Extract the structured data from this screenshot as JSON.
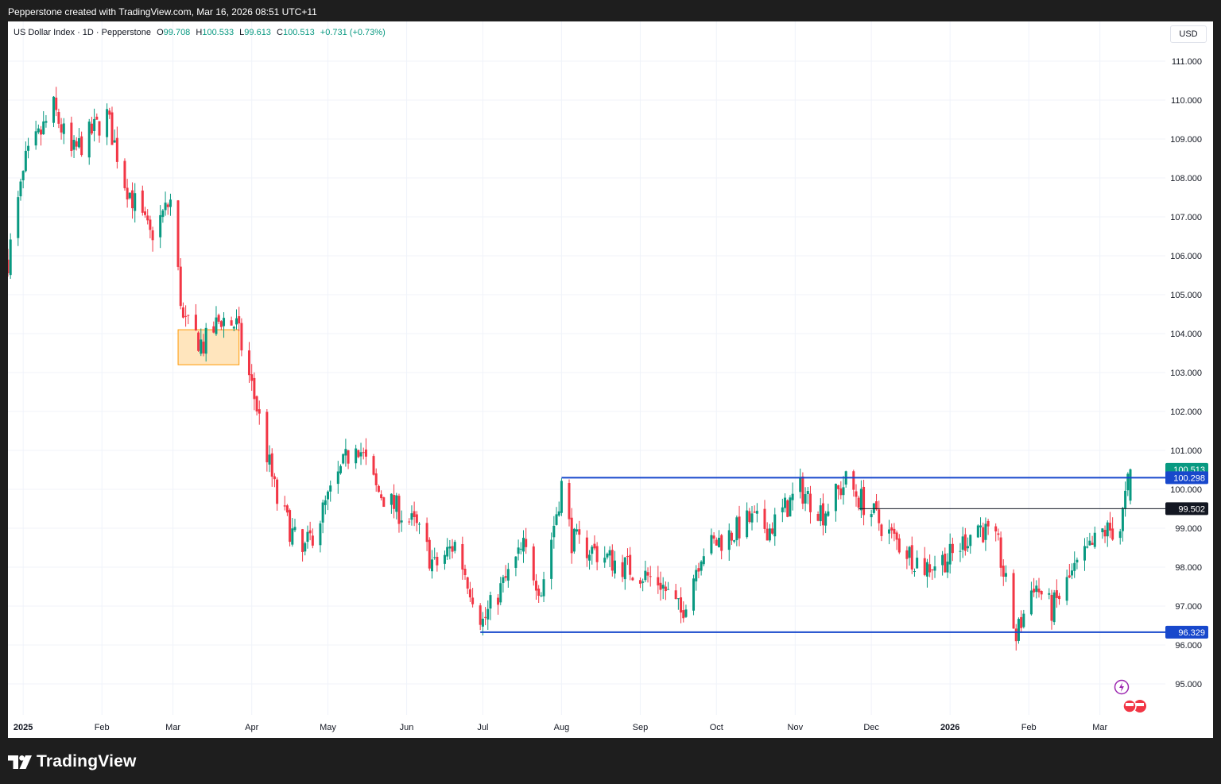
{
  "attribution": "Pepperstone created with TradingView.com, Mar 16, 2026 08:51 UTC+11",
  "legend": {
    "symbol": "US Dollar Index · 1D · Pepperstone",
    "open_label": "O",
    "open": "99.708",
    "high_label": "H",
    "high": "100.533",
    "low_label": "L",
    "low": "99.613",
    "close_label": "C",
    "close": "100.513",
    "change": "+0.731 (+0.73%)"
  },
  "currency_button": "USD",
  "brand": "TradingView",
  "colors": {
    "up": "#089981",
    "down": "#f23645",
    "level_line": "#1848cc",
    "mid_line": "#131722",
    "highlight_box": "#ffe0b2"
  },
  "chart_data": {
    "type": "candlestick",
    "title": "US Dollar Index · 1D · Pepperstone",
    "x_axis_ticks": [
      "2025",
      "Feb",
      "Mar",
      "Apr",
      "May",
      "Jun",
      "Jul",
      "Aug",
      "Sep",
      "Oct",
      "Nov",
      "Dec",
      "2026",
      "Feb",
      "Mar"
    ],
    "y_axis_ticks": [
      "111.000",
      "110.000",
      "109.000",
      "108.000",
      "107.000",
      "106.000",
      "105.000",
      "104.000",
      "103.000",
      "102.000",
      "101.000",
      "100.000",
      "99.000",
      "98.000",
      "97.000",
      "96.000",
      "95.000"
    ],
    "ylim": [
      94.2,
      111.3
    ],
    "grid": true,
    "price_path": [
      {
        "date": "2024-12-26",
        "value": 105.9
      },
      {
        "date": "2025-01-02",
        "value": 108.4
      },
      {
        "date": "2025-01-13",
        "value": 109.8
      },
      {
        "date": "2025-01-20",
        "value": 108.6
      },
      {
        "date": "2025-02-03",
        "value": 109.6
      },
      {
        "date": "2025-02-10",
        "value": 107.9
      },
      {
        "date": "2025-02-20",
        "value": 106.5
      },
      {
        "date": "2025-02-28",
        "value": 107.4
      },
      {
        "date": "2025-03-05",
        "value": 104.3
      },
      {
        "date": "2025-03-13",
        "value": 103.7
      },
      {
        "date": "2025-03-20",
        "value": 104.4
      },
      {
        "date": "2025-03-26",
        "value": 104.2
      },
      {
        "date": "2025-04-03",
        "value": 102.1
      },
      {
        "date": "2025-04-11",
        "value": 99.7
      },
      {
        "date": "2025-04-21",
        "value": 98.3
      },
      {
        "date": "2025-05-12",
        "value": 101.3
      },
      {
        "date": "2025-05-20",
        "value": 100.0
      },
      {
        "date": "2025-06-05",
        "value": 99.0
      },
      {
        "date": "2025-06-12",
        "value": 98.0
      },
      {
        "date": "2025-06-20",
        "value": 98.6
      },
      {
        "date": "2025-07-01",
        "value": 96.6
      },
      {
        "date": "2025-07-17",
        "value": 98.5
      },
      {
        "date": "2025-07-24",
        "value": 97.4
      },
      {
        "date": "2025-08-01",
        "value": 100.1
      },
      {
        "date": "2025-08-05",
        "value": 98.7
      },
      {
        "date": "2025-08-20",
        "value": 98.2
      },
      {
        "date": "2025-09-09",
        "value": 97.6
      },
      {
        "date": "2025-09-17",
        "value": 96.8
      },
      {
        "date": "2025-09-25",
        "value": 98.4
      },
      {
        "date": "2025-10-08",
        "value": 98.9
      },
      {
        "date": "2025-10-14",
        "value": 99.2
      },
      {
        "date": "2025-10-22",
        "value": 99.0
      },
      {
        "date": "2025-11-03",
        "value": 100.0
      },
      {
        "date": "2025-11-12",
        "value": 99.4
      },
      {
        "date": "2025-11-21",
        "value": 100.2
      },
      {
        "date": "2025-12-01",
        "value": 99.4
      },
      {
        "date": "2025-12-10",
        "value": 98.7
      },
      {
        "date": "2025-12-22",
        "value": 98.0
      },
      {
        "date": "2026-01-02",
        "value": 98.3
      },
      {
        "date": "2026-01-12",
        "value": 99.1
      },
      {
        "date": "2026-01-20",
        "value": 98.5
      },
      {
        "date": "2026-01-27",
        "value": 96.2
      },
      {
        "date": "2026-02-03",
        "value": 97.6
      },
      {
        "date": "2026-02-10",
        "value": 96.9
      },
      {
        "date": "2026-02-18",
        "value": 97.8
      },
      {
        "date": "2026-03-02",
        "value": 98.9
      },
      {
        "date": "2026-03-09",
        "value": 99.0
      },
      {
        "date": "2026-03-13",
        "value": 100.51
      }
    ],
    "horizontal_levels": [
      {
        "value": 100.298,
        "label": "100.298",
        "start_date": "2025-08-01",
        "style": "blue"
      },
      {
        "value": 99.502,
        "label": "99.502",
        "start_date": "2025-11-26",
        "style": "black"
      },
      {
        "value": 96.329,
        "label": "96.329",
        "start_date": "2025-06-30",
        "style": "blue"
      }
    ],
    "last_price": {
      "value": 100.513,
      "label": "100.513"
    },
    "highlight_zone": {
      "x_start": "2025-03-03",
      "x_end": "2025-03-27",
      "y_low": 103.2,
      "y_high": 104.1
    }
  }
}
